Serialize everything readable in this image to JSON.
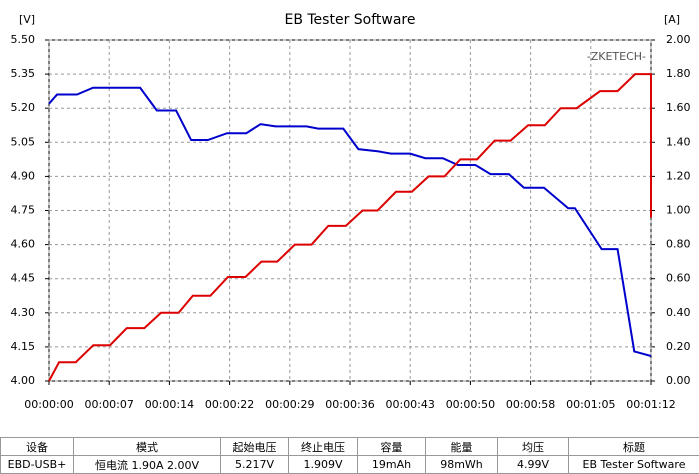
{
  "chart_data": {
    "type": "line",
    "title": "EB Tester Software",
    "y_unit": "[V]",
    "y2_unit": "[A]",
    "watermark": "-ZKETECH-",
    "grid": true,
    "xlim": [
      0,
      72
    ],
    "ylim": [
      4.0,
      5.5
    ],
    "y2lim": [
      0,
      2.0
    ],
    "xticks": [
      {
        "value": 0,
        "label": "00:00:00"
      },
      {
        "value": 7.2,
        "label": "00:00:07"
      },
      {
        "value": 14.4,
        "label": "00:00:14"
      },
      {
        "value": 21.6,
        "label": "00:00:22"
      },
      {
        "value": 28.8,
        "label": "00:00:29"
      },
      {
        "value": 36,
        "label": "00:00:36"
      },
      {
        "value": 43.2,
        "label": "00:00:43"
      },
      {
        "value": 50.4,
        "label": "00:00:50"
      },
      {
        "value": 57.6,
        "label": "00:00:58"
      },
      {
        "value": 64.8,
        "label": "00:01:05"
      },
      {
        "value": 72,
        "label": "00:01:12"
      }
    ],
    "yticks": [
      {
        "value": 4.0,
        "label": "4.00"
      },
      {
        "value": 4.15,
        "label": "4.15"
      },
      {
        "value": 4.3,
        "label": "4.30"
      },
      {
        "value": 4.45,
        "label": "4.45"
      },
      {
        "value": 4.6,
        "label": "4.60"
      },
      {
        "value": 4.75,
        "label": "4.75"
      },
      {
        "value": 4.9,
        "label": "4.90"
      },
      {
        "value": 5.05,
        "label": "5.05"
      },
      {
        "value": 5.2,
        "label": "5.20"
      },
      {
        "value": 5.35,
        "label": "5.35"
      },
      {
        "value": 5.5,
        "label": "5.50"
      }
    ],
    "y2ticks": [
      {
        "value": 0,
        "label": "0.00"
      },
      {
        "value": 0.2,
        "label": "0.20"
      },
      {
        "value": 0.4,
        "label": "0.40"
      },
      {
        "value": 0.6,
        "label": "0.60"
      },
      {
        "value": 0.8,
        "label": "0.80"
      },
      {
        "value": 1.0,
        "label": "1.00"
      },
      {
        "value": 1.2,
        "label": "1.20"
      },
      {
        "value": 1.4,
        "label": "1.40"
      },
      {
        "value": 1.6,
        "label": "1.60"
      },
      {
        "value": 1.8,
        "label": "1.80"
      },
      {
        "value": 2.0,
        "label": "2.00"
      }
    ],
    "series": [
      {
        "color": "#0000cc",
        "axis": "y",
        "x": [
          0,
          0.96,
          3.35,
          5.27,
          10.9,
          12.9,
          15.2,
          17.0,
          19.0,
          21.3,
          23.6,
          25.3,
          27.1,
          30.8,
          32.2,
          35.2,
          37.0,
          39.4,
          40.9,
          43.2,
          45.0,
          47.1,
          48.9,
          51.0,
          52.8,
          55.0,
          56.8,
          59.2,
          62.1,
          62.9,
          66.1,
          68.0,
          70.0,
          72.0
        ],
        "values": [
          5.22,
          5.26,
          5.26,
          5.29,
          5.29,
          5.19,
          5.19,
          5.06,
          5.06,
          5.09,
          5.09,
          5.13,
          5.12,
          5.12,
          5.11,
          5.11,
          5.02,
          5.01,
          5.0,
          5.0,
          4.98,
          4.98,
          4.95,
          4.95,
          4.91,
          4.91,
          4.85,
          4.85,
          4.76,
          4.76,
          4.58,
          4.58,
          4.13,
          4.11
        ]
      },
      {
        "color": "#dd0000",
        "axis": "y2",
        "x": [
          0,
          1.2,
          3.2,
          5.3,
          7.3,
          9.3,
          11.4,
          13.4,
          15.5,
          17.2,
          19.3,
          21.4,
          23.5,
          25.4,
          27.3,
          29.4,
          31.4,
          33.4,
          35.5,
          37.5,
          39.3,
          41.5,
          43.4,
          45.4,
          47.3,
          49.2,
          51.2,
          53.3,
          55.2,
          57.3,
          59.3,
          61.2,
          63.1,
          65.9,
          68.0,
          70.1,
          72.0,
          72.0
        ],
        "values": [
          0,
          0.11,
          0.11,
          0.21,
          0.21,
          0.31,
          0.31,
          0.4,
          0.4,
          0.5,
          0.5,
          0.61,
          0.61,
          0.7,
          0.7,
          0.8,
          0.8,
          0.91,
          0.91,
          1.0,
          1.0,
          1.11,
          1.11,
          1.2,
          1.2,
          1.3,
          1.3,
          1.41,
          1.41,
          1.5,
          1.5,
          1.6,
          1.6,
          1.7,
          1.7,
          1.8,
          1.8,
          0.96
        ]
      }
    ]
  },
  "table": {
    "header": [
      "设备",
      "模式",
      "起始电压",
      "终止电压",
      "容量",
      "能量",
      "均压",
      "标题"
    ],
    "row": [
      "EBD-USB+",
      "恒电流 1.90A 2.00V",
      "5.217V",
      "1.909V",
      "19mAh",
      "98mWh",
      "4.99V",
      "EB Tester Software"
    ]
  }
}
